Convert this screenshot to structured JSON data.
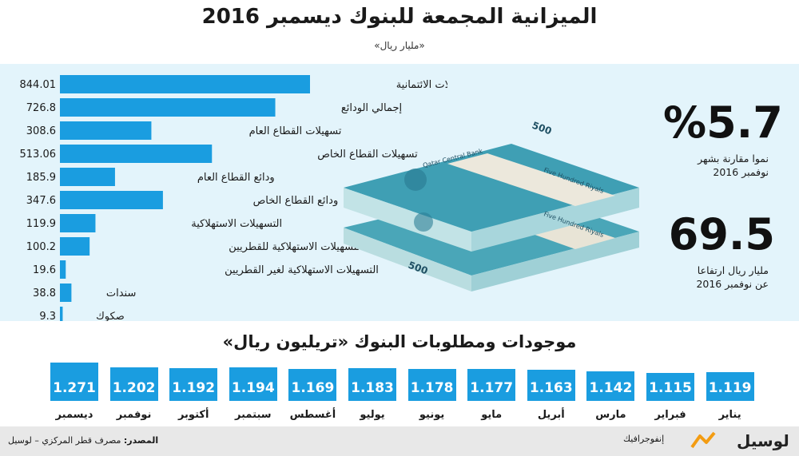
{
  "title": "الميزانية المجمعة للبنوك ديسمبر 2016",
  "subtitle": "«مليار ريال»",
  "chart_data": [
    {
      "type": "bar",
      "orientation": "horizontal",
      "categories": [
        "التسهيلات الائتمانية",
        "إجمالي الودائع",
        "تسهيلات القطاع العام",
        "تسهيلات القطاع الخاص",
        "ودائع القطاع العام",
        "ودائع القطاع الخاص",
        "التسهيلات الاستهلاكية",
        "التسهيلات الاستهلاكية للقطريين",
        "التسهيلات الاستهلاكية لغير القطريين",
        "سندات",
        "صكوك"
      ],
      "values": [
        844.01,
        726.8,
        308.6,
        513.06,
        185.9,
        347.6,
        119.9,
        100.2,
        19.6,
        38.8,
        9.3
      ],
      "value_labels": [
        "844.01",
        "726.8",
        "308.6",
        "513.06",
        "185.9",
        "347.6",
        "119.9",
        "100.2",
        "19.6",
        "38.8",
        "9.3"
      ],
      "color": "#1a9de0"
    },
    {
      "type": "bar",
      "title": "موجودات ومطلوبات البنوك «تريليون ريال»",
      "categories": [
        "ديسمبر",
        "نوفمبر",
        "أكتوبر",
        "سبتمبر",
        "أغسطس",
        "يوليو",
        "يونيو",
        "مايو",
        "أبريل",
        "مارس",
        "فبراير",
        "يناير"
      ],
      "values": [
        1.271,
        1.202,
        1.192,
        1.194,
        1.169,
        1.183,
        1.178,
        1.177,
        1.163,
        1.142,
        1.115,
        1.119
      ],
      "value_labels": [
        "1.271",
        "1.202",
        "1.192",
        "1.194",
        "1.169",
        "1.183",
        "1.178",
        "1.177",
        "1.163",
        "1.142",
        "1.115",
        "1.119"
      ],
      "color": "#1a9de0"
    }
  ],
  "stats": {
    "growth_value": "%5.7",
    "growth_caption_1": "نموا مقارنة بشهر",
    "growth_caption_2": "نوفمبر 2016",
    "increase_value": "69.5",
    "increase_caption_1": "مليار ريال ارتفاعا",
    "increase_caption_2": "عن نوفمبر 2016"
  },
  "banknote": {
    "bank_text": "Qatar Central Bank",
    "denomination": "500",
    "denomination_text": "Five Hundred Riyals"
  },
  "footer": {
    "source_label": "المصدر:",
    "source_text": "مصرف قطر المركزي – لوسيل",
    "brand_small": "إنفوجرافيك",
    "brand_logo": "لوسيل"
  },
  "colors": {
    "accent": "#1a9de0",
    "panel": "#e3f4fb",
    "footer": "#e8e8e8",
    "logo_accent": "#f39c12"
  }
}
